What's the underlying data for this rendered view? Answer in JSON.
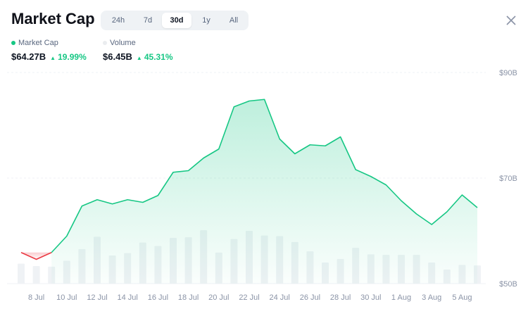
{
  "header": {
    "title": "Market Cap",
    "tabs": [
      {
        "label": "24h",
        "active": false
      },
      {
        "label": "7d",
        "active": false
      },
      {
        "label": "30d",
        "active": true
      },
      {
        "label": "1y",
        "active": false
      },
      {
        "label": "All",
        "active": false
      }
    ],
    "close_icon": "close-icon"
  },
  "stats": {
    "market_cap": {
      "label": "Market Cap",
      "value": "$64.27B",
      "change": "19.99%",
      "color": "#16c784"
    },
    "volume": {
      "label": "Volume",
      "value": "$6.45B",
      "change": "45.31%",
      "color": "#eaecef"
    }
  },
  "colors": {
    "up": "#16c784",
    "down": "#ea3943",
    "volume_bar": "#eff2f5",
    "grid": "#eff2f5"
  },
  "chart_data": {
    "type": "area",
    "x_ticks": [
      "8 Jul",
      "10 Jul",
      "12 Jul",
      "14 Jul",
      "16 Jul",
      "18 Jul",
      "20 Jul",
      "22 Jul",
      "24 Jul",
      "26 Jul",
      "28 Jul",
      "30 Jul",
      "1 Aug",
      "3 Aug",
      "5 Aug"
    ],
    "y_ticks": [
      "$90B",
      "$70B",
      "$50B"
    ],
    "ylim": [
      50,
      90
    ],
    "series": [
      {
        "name": "Market Cap",
        "values": [
          55.9,
          54.6,
          55.9,
          59.0,
          64.7,
          65.9,
          65.1,
          65.9,
          65.4,
          66.7,
          71.1,
          71.4,
          73.8,
          75.5,
          83.5,
          84.6,
          84.9,
          77.4,
          74.6,
          76.3,
          76.1,
          77.8,
          71.6,
          70.3,
          68.7,
          65.7,
          63.2,
          61.2,
          63.6,
          66.8,
          64.4
        ]
      },
      {
        "name": "Volume",
        "values": [
          3.4,
          3.0,
          2.9,
          3.9,
          5.9,
          8.0,
          4.8,
          5.2,
          7.0,
          6.4,
          7.8,
          7.9,
          9.1,
          5.3,
          7.6,
          9.0,
          8.2,
          8.1,
          7.1,
          5.5,
          3.6,
          4.2,
          6.1,
          5.0,
          4.9,
          4.9,
          4.9,
          3.6,
          2.4,
          3.2,
          3.1
        ]
      }
    ],
    "grid": true
  }
}
